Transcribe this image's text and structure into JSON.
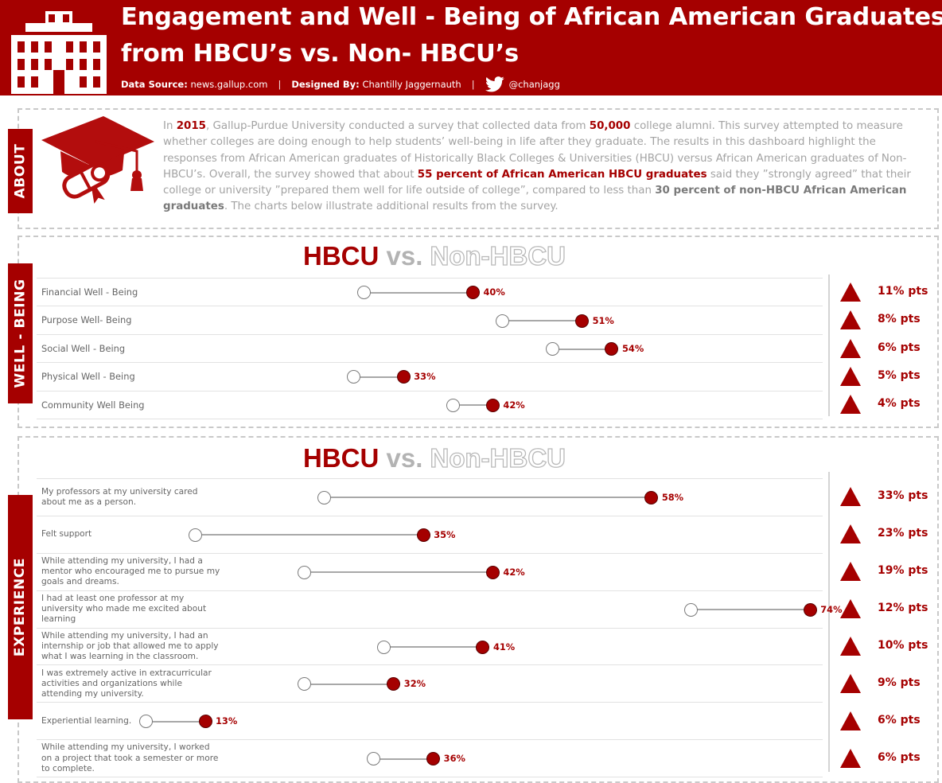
{
  "header": {
    "title_line1": "Engagement and Well - Being of African American Graduates",
    "title_line2": "from HBCU’s vs. Non- HBCU’s",
    "data_source_label": "Data Source:",
    "data_source_value": "news.gallup.com",
    "designed_by_label": "Designed By:",
    "designed_by_value": "Chantilly Jaggernauth",
    "twitter_handle": "@chanjagg",
    "separator": "|",
    "icons": [
      "building-icon",
      "twitter-icon"
    ]
  },
  "about": {
    "tab_label": "ABOUT",
    "icon": "graduation-cap-diploma-icon",
    "segments": [
      {
        "text": "In ",
        "style": "plain"
      },
      {
        "text": "2015",
        "style": "red"
      },
      {
        "text": ", Gallup-Purdue University conducted a survey that collected data from ",
        "style": "plain"
      },
      {
        "text": "50,000",
        "style": "red"
      },
      {
        "text": " college alumni. This survey attempted to measure whether colleges are doing enough to help students’ well-being in life after they graduate. The results in this dashboard highlight the responses from African American graduates of Historically Black Colleges & Universities (HBCU) versus African American graduates of Non- HBCU’s. Overall, the survey showed that about ",
        "style": "plain"
      },
      {
        "text": "55 percent of African American HBCU graduates",
        "style": "red"
      },
      {
        "text": " said they ”strongly agreed” that their college or university ”prepared them well for life outside of college”, compared to less than ",
        "style": "plain"
      },
      {
        "text": "30 percent of non-HBCU African American graduates",
        "style": "grey"
      },
      {
        "text": ". The charts below illustrate additional results from the survey.",
        "style": "plain"
      }
    ]
  },
  "wellbeing": {
    "tab_label": "WELL - BEING",
    "header_hbcu": "HBCU",
    "header_vs": "vs.",
    "header_non": "Non-HBCU"
  },
  "experience": {
    "tab_label": "EXPERIENCE",
    "header_hbcu": "HBCU",
    "header_vs": "vs.",
    "header_non": "Non-HBCU"
  },
  "colors": {
    "accent": "#a50000",
    "muted_text": "#a3a3a3",
    "connector": "#a8a8a8",
    "non_hbcu_dot": "#ffffff"
  },
  "chart_data": [
    {
      "type": "dumbbell",
      "series": [
        {
          "name": "HBCU"
        },
        {
          "name": "Non-HBCU"
        }
      ],
      "x_range": [
        0,
        80
      ],
      "grid": false,
      "categories": [
        "Financial Well - Being",
        "Purpose Well- Being",
        "Social Well - Being",
        "Physical Well - Being",
        "Community Well Being"
      ],
      "hbcu_values": [
        40,
        51,
        54,
        33,
        42
      ],
      "non_hbcu_values": [
        29,
        43,
        48,
        28,
        38
      ],
      "value_labels": [
        "40%",
        "51%",
        "54%",
        "33%",
        "42%"
      ],
      "diff_labels": [
        "11% pts",
        "8% pts",
        "6% pts",
        "5% pts",
        "4% pts"
      ]
    },
    {
      "type": "dumbbell",
      "series": [
        {
          "name": "HBCU"
        },
        {
          "name": "Non-HBCU"
        }
      ],
      "x_range": [
        0,
        80
      ],
      "grid": false,
      "categories": [
        "My professors at my university cared about me as a person.",
        "Felt support",
        "While attending my university, I had a mentor who encouraged me to pursue my goals and dreams.",
        "I had at least one professor at my university who made me excited about learning",
        "While attending my university, I had an internship or job that allowed me to apply what I was learning in the classroom.",
        "I was extremely active in extracurricular activities and organizations while attending my university.",
        "Experiential learning.",
        "While attending my university, I worked on a project that took a semester or more to complete."
      ],
      "hbcu_values": [
        58,
        35,
        42,
        74,
        41,
        32,
        13,
        36
      ],
      "non_hbcu_values": [
        25,
        12,
        23,
        62,
        31,
        23,
        7,
        30
      ],
      "value_labels": [
        "58%",
        "35%",
        "42%",
        "74%",
        "41%",
        "32%",
        "13%",
        "36%"
      ],
      "diff_labels": [
        "33% pts",
        "23% pts",
        "19% pts",
        "12% pts",
        "10% pts",
        "9% pts",
        "6% pts",
        "6% pts"
      ]
    }
  ]
}
